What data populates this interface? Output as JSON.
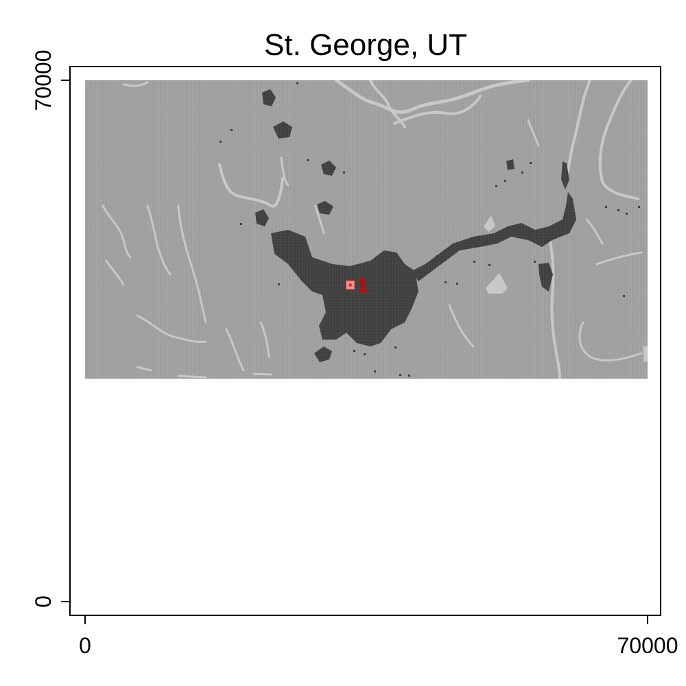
{
  "chart_data": {
    "type": "map",
    "title": "St. George, UT",
    "xlim": [
      0,
      70000
    ],
    "ylim": [
      0,
      70000
    ],
    "x_ticks": [
      {
        "value": 0,
        "label": "0"
      },
      {
        "value": 70000,
        "label": "70000"
      }
    ],
    "y_ticks": [
      {
        "value": 0,
        "label": "0"
      },
      {
        "value": 70000,
        "label": "70000"
      }
    ],
    "raster_extent": {
      "x": [
        0,
        70000
      ],
      "y": [
        30000,
        70000
      ]
    },
    "grid": false,
    "legend": "none",
    "markers": [
      {
        "label": "1",
        "x": 33000,
        "y": 42500
      }
    ],
    "colors": {
      "background": "#9e9e9e",
      "streams": "#c8c8c8",
      "urban": "#3f3f3f",
      "marker_fill": "#ff8a8a",
      "marker_label": "#d40000"
    }
  }
}
